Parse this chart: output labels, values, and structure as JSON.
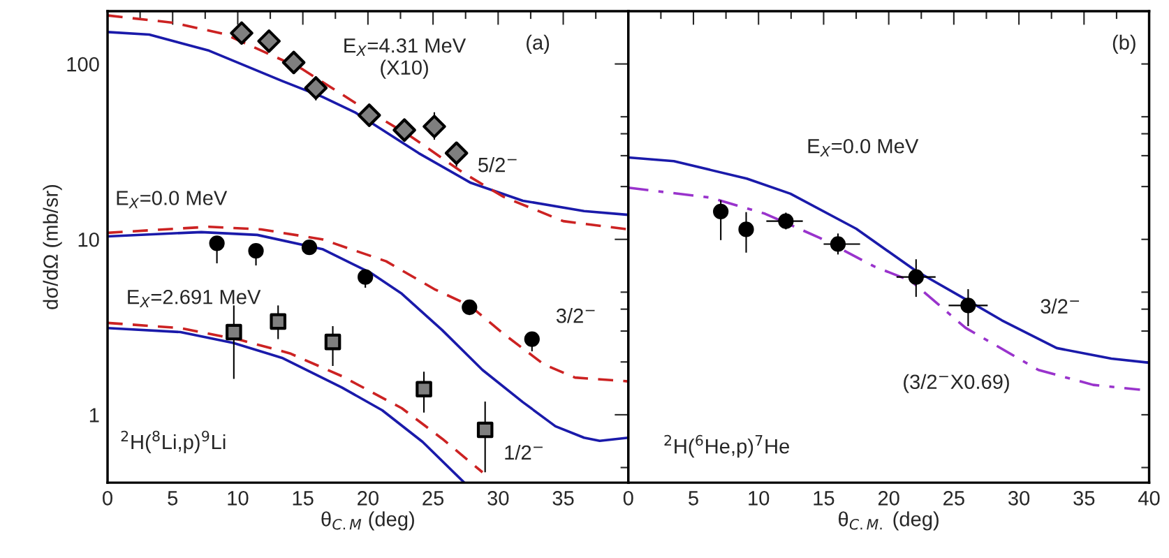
{
  "chart_data": [
    {
      "type": "line",
      "xlabel": "θ$_{C.M}$ (deg)",
      "ylabel": "dσ/dΩ (mb/sr)",
      "log": "y",
      "grid": false,
      "xlim": [
        0,
        40
      ],
      "xticks": [
        0,
        {
          "value": 2.5,
          "label": null
        },
        5,
        {
          "value": 7.5,
          "label": null
        },
        10,
        {
          "value": 12.5,
          "label": null
        },
        15,
        {
          "value": 17.5,
          "label": null
        },
        20,
        {
          "value": 22.5,
          "label": null
        },
        25,
        {
          "value": 27.5,
          "label": null
        },
        30,
        {
          "value": 32.5,
          "label": null
        },
        35,
        {
          "value": 37.5,
          "label": null
        },
        {
          "value": 40,
          "label": null
        }
      ],
      "ylim": [
        0.41,
        200
      ],
      "yticks": [
        {
          "value": 0.5,
          "label": null
        },
        1,
        {
          "value": 2,
          "label": null
        },
        {
          "value": 3,
          "label": null
        },
        {
          "value": 4,
          "label": null
        },
        {
          "value": 5,
          "label": null
        },
        10,
        {
          "value": 20,
          "label": null
        },
        {
          "value": 30,
          "label": null
        },
        {
          "value": 40,
          "label": null
        },
        {
          "value": 50,
          "label": null
        },
        100,
        {
          "value": 200,
          "label": null
        }
      ],
      "series": [
        {
          "line_style": "solid",
          "color": "#1a1aaa",
          "x": [
            0,
            3.2,
            7.8,
            13.4,
            16.5,
            19.0,
            23.9,
            27.9,
            31.9,
            36.6,
            40
          ],
          "values": [
            152,
            147,
            119,
            80,
            65,
            53,
            31,
            21,
            16.6,
            14.5,
            13.8
          ]
        },
        {
          "line_style": "dashed",
          "color": "#cc2222",
          "x": [
            0,
            5,
            9.0,
            14.9,
            19.5,
            23.3,
            27.3,
            30.4,
            35,
            40
          ],
          "values": [
            189,
            172,
            148,
            94,
            57,
            38.6,
            24,
            17.5,
            12.7,
            11.4
          ]
        },
        {
          "line_style": "solid",
          "color": "#1a1aaa",
          "x": [
            0,
            7.2,
            11.5,
            16.5,
            20.2,
            22.6,
            25.7,
            28.8,
            31.9,
            34.4,
            36.6,
            37.8,
            40
          ],
          "values": [
            10.4,
            11,
            10.6,
            8.8,
            6.45,
            4.9,
            3.04,
            1.8,
            1.18,
            0.86,
            0.74,
            0.71,
            0.74
          ]
        },
        {
          "line_style": "dashed",
          "color": "#cc2222",
          "x": [
            0,
            7.8,
            11.8,
            16.5,
            21.4,
            25.1,
            27.8,
            30.4,
            33.5,
            35.9,
            40
          ],
          "values": [
            10.9,
            11.8,
            11.4,
            10,
            7.5,
            5.2,
            4.2,
            2.9,
            1.94,
            1.63,
            1.55
          ]
        },
        {
          "line_style": "solid",
          "color": "#1a1aaa",
          "x": [
            0,
            5.6,
            9.65,
            13.4,
            18.0,
            21.1,
            24.2,
            27.4
          ],
          "values": [
            3.12,
            2.96,
            2.57,
            2.11,
            1.43,
            1.06,
            0.7,
            0.41
          ]
        },
        {
          "line_style": "dashed",
          "color": "#cc2222",
          "x": [
            0,
            5.6,
            10.2,
            14,
            18.0,
            22.6,
            25.7,
            28.8
          ],
          "values": [
            3.34,
            3.12,
            2.67,
            2.24,
            1.66,
            1.09,
            0.73,
            0.47
          ]
        },
        {
          "type": "scatter",
          "marker": "diamond",
          "color": "#7f7f7f",
          "x": [
            10.3,
            12.4,
            14.3,
            16.0,
            20.1,
            22.8,
            25.1,
            26.8
          ],
          "values": [
            150,
            135,
            102,
            73,
            51,
            42,
            44,
            31
          ],
          "errors": [
            [
              135,
              170
            ],
            [
              118,
              152
            ],
            [
              88,
              118
            ],
            [
              62,
              85
            ],
            [
              44,
              58
            ],
            [
              36,
              48
            ],
            [
              37,
              53
            ],
            [
              26,
              36
            ]
          ]
        },
        {
          "type": "scatter",
          "marker": "circle",
          "color": "#000000",
          "x": [
            8.4,
            11.4,
            15.5,
            19.8,
            27.8,
            32.6
          ],
          "values": [
            9.5,
            8.6,
            9.0,
            6.1,
            4.1,
            2.7
          ],
          "errors": [
            [
              7.3,
              10.3
            ],
            [
              7.1,
              9.3
            ],
            null,
            [
              5.3,
              6.1
            ],
            [
              3.7,
              4.5
            ],
            [
              2.3,
              2.9
            ]
          ]
        },
        {
          "type": "scatter",
          "marker": "square",
          "color": "#7f7f7f",
          "x": [
            9.7,
            13.1,
            17.3,
            24.3,
            29.0
          ],
          "values": [
            2.96,
            3.4,
            2.6,
            1.4,
            0.82
          ],
          "errors": [
            [
              1.6,
              4.2
            ],
            [
              2.7,
              4.2
            ],
            [
              1.9,
              3.2
            ],
            [
              1.03,
              1.76
            ],
            [
              0.47,
              1.19
            ]
          ]
        }
      ],
      "annotations": [
        "E$_{X}$=4.31 MeV\n(X10)",
        "(a)",
        "5/2$^{−}$",
        "E$_{X}$=0.0 MeV",
        "E$_{X}$=2.691 MeV",
        "3/2$^{−}$",
        "1/2$^{−}$",
        "$^{2}$H($^{8}$Li,p)$^{9}$Li"
      ]
    },
    {
      "type": "line",
      "xlabel": "θ$_{C.M.}$ (deg)",
      "log": "y",
      "grid": false,
      "tick_labels": "x",
      "xlim": [
        0,
        40
      ],
      "xticks": [
        0,
        {
          "value": 2.5,
          "label": null
        },
        5,
        {
          "value": 7.5,
          "label": null
        },
        10,
        {
          "value": 12.5,
          "label": null
        },
        15,
        {
          "value": 17.5,
          "label": null
        },
        20,
        {
          "value": 22.5,
          "label": null
        },
        25,
        {
          "value": 27.5,
          "label": null
        },
        30,
        {
          "value": 32.5,
          "label": null
        },
        35,
        {
          "value": 37.5,
          "label": null
        },
        40
      ],
      "ylim": [
        0.41,
        200
      ],
      "yticks": [
        {
          "value": 0.5,
          "label": null
        },
        {
          "value": 1,
          "label": null
        },
        {
          "value": 2,
          "label": null
        },
        {
          "value": 3,
          "label": null
        },
        {
          "value": 4,
          "label": null
        },
        {
          "value": 5,
          "label": null
        },
        {
          "value": 10,
          "label": null
        },
        {
          "value": 20,
          "label": null
        },
        {
          "value": 30,
          "label": null
        },
        {
          "value": 40,
          "label": null
        },
        {
          "value": 50,
          "label": null
        },
        {
          "value": 100,
          "label": null
        },
        {
          "value": 200,
          "label": null
        }
      ],
      "series": [
        {
          "line_style": "solid",
          "color": "#1a1aaa",
          "x": [
            0,
            3.5,
            9.1,
            12.45,
            17.5,
            22.1,
            26.1,
            28.7,
            32.9,
            37.1,
            40
          ],
          "values": [
            29.3,
            27.9,
            22.2,
            18.2,
            11.5,
            6.6,
            4.47,
            3.45,
            2.4,
            2.09,
            1.98
          ]
        },
        {
          "line_style": "dashdot",
          "color": "#9933cc",
          "x": [
            0,
            6.3,
            10.5,
            14.7,
            18.9,
            21.7,
            25.9,
            31.5,
            35.7,
            39.3
          ],
          "values": [
            19.7,
            17.3,
            14,
            10.2,
            7.0,
            5.8,
            3.13,
            1.8,
            1.48,
            1.39
          ]
        },
        {
          "type": "scatter",
          "marker": "circle",
          "color": "#000000",
          "x": [
            7.1,
            9.05,
            12.1,
            16.1,
            22.1,
            26.1
          ],
          "values": [
            14.4,
            11.4,
            12.7,
            9.4,
            6.1,
            4.2
          ],
          "errors": [
            [
              9.9,
              16.7
            ],
            [
              8.4,
              14.3
            ],
            [
              11.4,
              14.2
            ],
            [
              8.2,
              10.8
            ],
            [
              4.7,
              7.7
            ],
            [
              3.2,
              5.2
            ]
          ],
          "xerrors": [
            null,
            null,
            [
              10.6,
              13.4
            ],
            [
              15,
              17.8
            ],
            [
              20.6,
              23.6
            ],
            [
              24.6,
              27.6
            ]
          ]
        }
      ],
      "annotations": [
        "(b)",
        "E$_{X}$=0.0 MeV",
        "3/2$^{−}$",
        "(3/2$^{−}$X0.69)",
        "$^{2}$H($^{6}$He,p)$^{7}$He"
      ]
    }
  ]
}
